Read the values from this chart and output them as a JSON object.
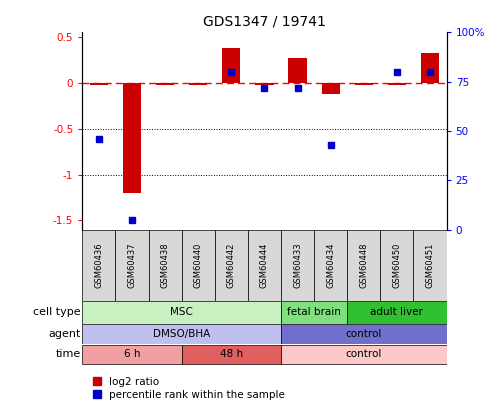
{
  "title": "GDS1347 / 19741",
  "samples": [
    "GSM60436",
    "GSM60437",
    "GSM60438",
    "GSM60440",
    "GSM60442",
    "GSM60444",
    "GSM60433",
    "GSM60434",
    "GSM60448",
    "GSM60450",
    "GSM60451"
  ],
  "log2_ratio": [
    -0.02,
    -1.2,
    -0.02,
    -0.02,
    0.38,
    -0.02,
    0.27,
    -0.12,
    -0.02,
    -0.02,
    0.32
  ],
  "percentile_rank": [
    46,
    5,
    null,
    null,
    80,
    72,
    72,
    43,
    null,
    80,
    80
  ],
  "cell_type_groups": [
    {
      "label": "MSC",
      "start": 0,
      "end": 5,
      "color": "#c8f0c0"
    },
    {
      "label": "fetal brain",
      "start": 6,
      "end": 7,
      "color": "#80e080"
    },
    {
      "label": "adult liver",
      "start": 8,
      "end": 10,
      "color": "#30c030"
    }
  ],
  "agent_groups": [
    {
      "label": "DMSO/BHA",
      "start": 0,
      "end": 5,
      "color": "#c0c0f0"
    },
    {
      "label": "control",
      "start": 6,
      "end": 10,
      "color": "#7070cc"
    }
  ],
  "time_groups": [
    {
      "label": "6 h",
      "start": 0,
      "end": 2,
      "color": "#f0a0a0"
    },
    {
      "label": "48 h",
      "start": 3,
      "end": 5,
      "color": "#e06060"
    },
    {
      "label": "control",
      "start": 6,
      "end": 10,
      "color": "#fcc8c8"
    }
  ],
  "ylim_left": [
    -1.6,
    0.55
  ],
  "ylim_right": [
    0,
    100
  ],
  "bar_color": "#cc0000",
  "dot_color": "#0000cc",
  "sample_box_color": "#d8d8d8",
  "legend_items": [
    "log2 ratio",
    "percentile rank within the sample"
  ]
}
